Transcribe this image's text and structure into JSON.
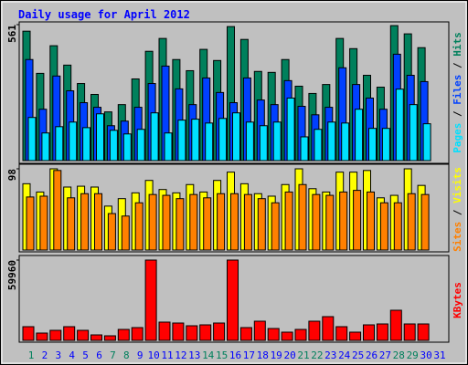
{
  "chart_data": [
    {
      "type": "bar",
      "title": "Daily usage for April 2012",
      "ylim": [
        0,
        561
      ],
      "yticks": [
        561
      ],
      "legend_separator": " / ",
      "series": [
        {
          "name": "Hits",
          "color": "#00805c",
          "values": [
            534,
            360,
            474,
            394,
            318,
            273,
            201,
            231,
            337,
            451,
            504,
            417,
            371,
            459,
            413,
            553,
            500,
            368,
            364,
            417,
            307,
            277,
            314,
            504,
            462,
            352,
            303,
            557,
            523,
            466,
            null
          ]
        },
        {
          "name": "Files",
          "color": "#0040ff",
          "values": [
            417,
            212,
            349,
            288,
            239,
            220,
            144,
            163,
            220,
            318,
            390,
            296,
            231,
            341,
            281,
            239,
            341,
            250,
            231,
            330,
            224,
            189,
            220,
            383,
            314,
            258,
            212,
            439,
            352,
            326,
            null
          ]
        },
        {
          "name": "Pages",
          "color": "#00e0ff",
          "values": [
            178,
            114,
            140,
            159,
            136,
            193,
            125,
            110,
            129,
            197,
            114,
            167,
            171,
            155,
            174,
            197,
            159,
            144,
            159,
            258,
            98,
            129,
            159,
            155,
            212,
            133,
            133,
            295,
            231,
            152,
            null
          ]
        }
      ]
    },
    {
      "type": "bar",
      "ylim": [
        0,
        98
      ],
      "yticks": [
        98
      ],
      "legend_separator": " / ",
      "series": [
        {
          "name": "Visits",
          "color": "#ffff00",
          "values": [
            80,
            70,
            98,
            76,
            77,
            76,
            53,
            62,
            69,
            84,
            73,
            69,
            79,
            70,
            84,
            94,
            80,
            68,
            65,
            79,
            98,
            74,
            70,
            94,
            94,
            96,
            63,
            66,
            98,
            78,
            null
          ]
        },
        {
          "name": "Sites",
          "color": "#ff8000",
          "values": [
            64,
            65,
            96,
            63,
            68,
            68,
            44,
            41,
            57,
            67,
            66,
            62,
            67,
            63,
            68,
            68,
            67,
            62,
            57,
            70,
            79,
            67,
            66,
            70,
            72,
            70,
            57,
            57,
            68,
            67,
            null
          ]
        }
      ]
    },
    {
      "type": "bar",
      "ylim": [
        0,
        59960
      ],
      "yticks": [
        59960
      ],
      "categories": [
        "1",
        "2",
        "3",
        "4",
        "5",
        "6",
        "7",
        "8",
        "9",
        "10",
        "11",
        "12",
        "13",
        "14",
        "15",
        "16",
        "17",
        "18",
        "19",
        "20",
        "21",
        "22",
        "23",
        "24",
        "25",
        "26",
        "27",
        "28",
        "29",
        "30",
        "31"
      ],
      "category_colors": [
        "#00805c",
        "#0000ff",
        "#0000ff",
        "#0000ff",
        "#0000ff",
        "#0000ff",
        "#00805c",
        "#00805c",
        "#0000ff",
        "#0000ff",
        "#0000ff",
        "#0000ff",
        "#0000ff",
        "#00805c",
        "#00805c",
        "#0000ff",
        "#0000ff",
        "#0000ff",
        "#0000ff",
        "#0000ff",
        "#00805c",
        "#00805c",
        "#0000ff",
        "#0000ff",
        "#0000ff",
        "#0000ff",
        "#0000ff",
        "#00805c",
        "#00805c",
        "#0000ff",
        "#0000ff"
      ],
      "series": [
        {
          "name": "KBytes",
          "color": "#ff0000",
          "values": [
            10220,
            5451,
            7495,
            10220,
            7495,
            4088,
            3407,
            8176,
            9539,
            59960,
            13627,
            12946,
            10902,
            11583,
            12946,
            59960,
            9539,
            14309,
            8858,
            6132,
            8176,
            14309,
            17715,
            10220,
            6132,
            11583,
            12264,
            22485,
            12264,
            12264,
            null
          ]
        }
      ]
    }
  ]
}
